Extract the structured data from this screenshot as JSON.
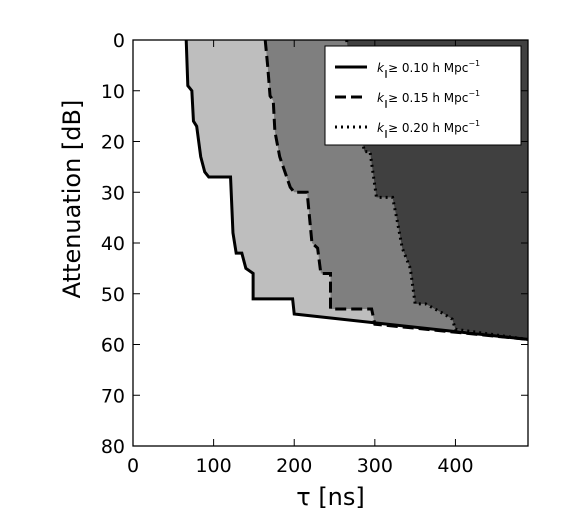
{
  "chart_data": {
    "type": "area",
    "title": "",
    "xlabel": "τ [ns]",
    "ylabel": "Attenuation [dB]",
    "xlim": [
      0,
      490
    ],
    "ylim": [
      80,
      0
    ],
    "y_inverted": true,
    "xticks": [
      0,
      100,
      200,
      300,
      400
    ],
    "yticks": [
      0,
      10,
      20,
      30,
      40,
      50,
      60,
      70,
      80
    ],
    "grid": false,
    "legend_position": "top-right",
    "colors": {
      "band_0_10": "#bebebe",
      "band_0_15": "#7f7f7f",
      "band_0_20": "#404040",
      "line": "#000000"
    },
    "series": [
      {
        "name": "k∥≥ 0.10 h Mpc⁻¹",
        "style": "solid",
        "fill": "#bebebe",
        "points": [
          [
            66,
            0
          ],
          [
            68,
            9
          ],
          [
            73,
            10
          ],
          [
            75,
            16
          ],
          [
            79,
            17
          ],
          [
            84,
            23
          ],
          [
            89,
            26
          ],
          [
            94,
            27
          ],
          [
            121,
            27
          ],
          [
            124,
            38
          ],
          [
            128,
            42
          ],
          [
            135,
            42
          ],
          [
            140,
            45
          ],
          [
            149,
            46
          ],
          [
            149,
            51
          ],
          [
            198,
            51
          ],
          [
            200,
            54
          ],
          [
            490,
            59
          ]
        ]
      },
      {
        "name": "k∥≥ 0.15 h Mpc⁻¹",
        "style": "dashed",
        "fill": "#7f7f7f",
        "points": [
          [
            164,
            0
          ],
          [
            167,
            5
          ],
          [
            170,
            11
          ],
          [
            174,
            12
          ],
          [
            176,
            18
          ],
          [
            182,
            23
          ],
          [
            195,
            29
          ],
          [
            200,
            30
          ],
          [
            216,
            30
          ],
          [
            222,
            40
          ],
          [
            229,
            41
          ],
          [
            233,
            46
          ],
          [
            245,
            46
          ],
          [
            245,
            53
          ],
          [
            296,
            53
          ],
          [
            300,
            56
          ],
          [
            490,
            59
          ]
        ]
      },
      {
        "name": "k∥≥ 0.20 h Mpc⁻¹",
        "style": "dotted",
        "fill": "#404040",
        "points": [
          [
            265,
            0
          ],
          [
            277,
            13
          ],
          [
            287,
            22
          ],
          [
            294,
            22
          ],
          [
            302,
            31
          ],
          [
            322,
            31
          ],
          [
            327,
            35
          ],
          [
            334,
            41
          ],
          [
            344,
            45
          ],
          [
            350,
            52
          ],
          [
            363,
            52
          ],
          [
            386,
            54
          ],
          [
            396,
            55
          ],
          [
            400,
            57
          ],
          [
            490,
            59
          ]
        ]
      }
    ],
    "legend": [
      {
        "label_prefix": "k",
        "label_sub": "∥",
        "label_rest": "≥ 0.10 h Mpc",
        "label_sup": "−1",
        "style": "solid"
      },
      {
        "label_prefix": "k",
        "label_sub": "∥",
        "label_rest": "≥ 0.15 h Mpc",
        "label_sup": "−1",
        "style": "dashed"
      },
      {
        "label_prefix": "k",
        "label_sub": "∥",
        "label_rest": "≥ 0.20 h Mpc",
        "label_sup": "−1",
        "style": "dotted"
      }
    ]
  }
}
